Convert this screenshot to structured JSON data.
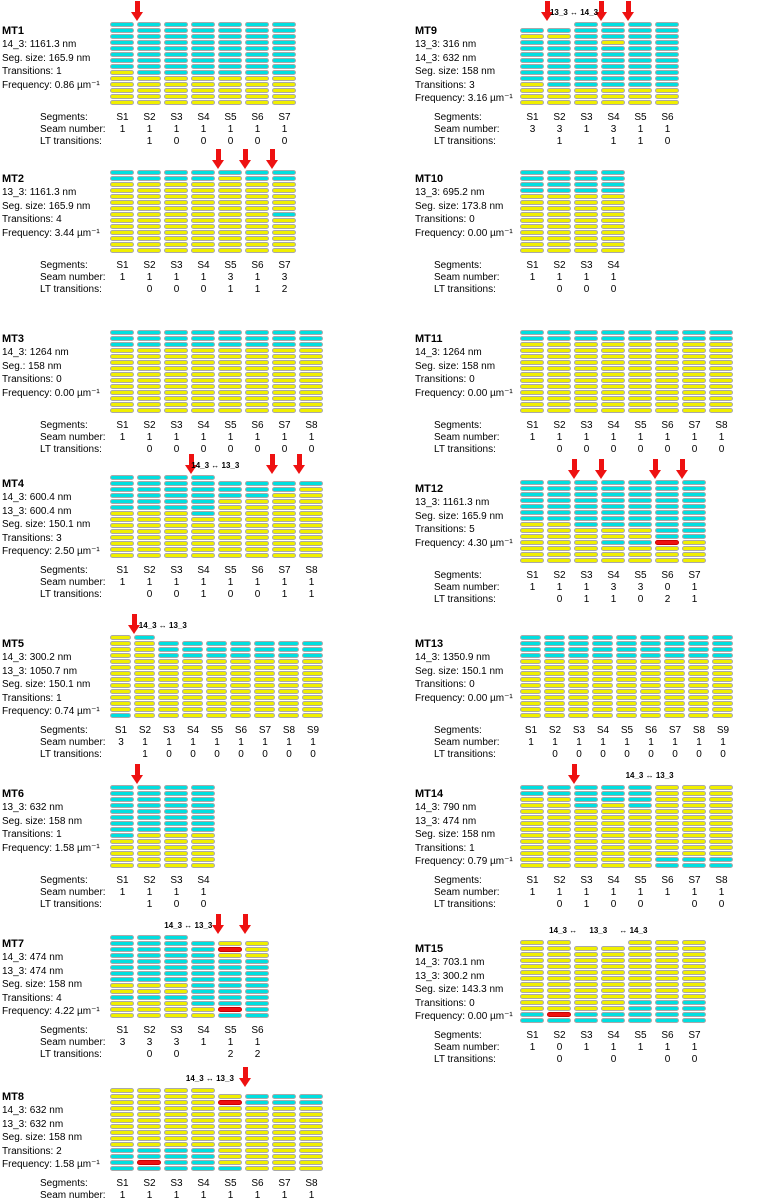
{
  "figure": {
    "colors": {
      "lattice_cyan": "#00dfe0",
      "lattice_yellow": "#f0ef00",
      "lattice_red": "#ee1111",
      "block_border": "#a9a9a9",
      "arrow_red": "#ee1111",
      "background": "#ffffff",
      "text": "#000000"
    },
    "row_labels": {
      "segments": "Segments:",
      "seam": "Seam number:",
      "lt": "LT transitions:"
    },
    "panels": [
      {
        "id": "MT1",
        "title": "MT1",
        "lines": [
          "14_3: 1161.3 nm",
          "Seg. size: 165.9 nm",
          "Transitions: 1",
          "Frequency: 0.86 µm⁻¹"
        ],
        "cols": [
          "ccccccccyyyyyy",
          "cccccccccyyyyy",
          "cccccccccyyyyy",
          "cccccccccyyyyy",
          "cccccccccyyyyy",
          "cccccccccyyyyy",
          "cccccccccyyyyy"
        ],
        "headers": [
          "S1",
          "S2",
          "S3",
          "S4",
          "S5",
          "S6",
          "S7"
        ],
        "seam": [
          "1",
          "1",
          "1",
          "1",
          "1",
          "1",
          "1"
        ],
        "lt": [
          "",
          "1",
          "0",
          "0",
          "0",
          "0",
          "0"
        ],
        "arrows": [
          1
        ],
        "labels": []
      },
      {
        "id": "MT2",
        "title": "MT2",
        "lines": [
          "13_3: 1161.3 nm",
          "Seg. size: 165.9 nm",
          "Transitions: 4",
          "Frequency: 3.44 µm⁻¹"
        ],
        "cols": [
          "ccyyyyyyyyyyyy",
          "ccyyyyyyyyyyyy",
          "ccyyyyyyyyyyyy",
          "ccyyyyyyyyyyyy",
          "cyyyyyyyyyyyyy",
          "ccyyyyyyyyyyyy",
          "ccyyyyycyyyyyy"
        ],
        "headers": [
          "S1",
          "S2",
          "S3",
          "S4",
          "S5",
          "S6",
          "S7"
        ],
        "seam": [
          "1",
          "1",
          "1",
          "1",
          "3",
          "1",
          "3"
        ],
        "lt": [
          "",
          "0",
          "0",
          "0",
          "1",
          "1",
          "2"
        ],
        "arrows": [
          4,
          5,
          6
        ],
        "labels": []
      },
      {
        "id": "MT3",
        "title": "MT3",
        "lines": [
          "14_3: 1264 nm",
          "Seg.: 158 nm",
          "Transitions: 0",
          "Frequency: 0.00 µm⁻¹"
        ],
        "cols": [
          "cccyyyyyyyyyyy",
          "cccyyyyyyyyyyy",
          "cccyyyyyyyyyyy",
          "cccyyyyyyyyyyy",
          "cccyyyyyyyyyyy",
          "cccyyyyyyyyyyy",
          "cccyyyyyyyyyyy",
          "cccyyyyyyyyyyy"
        ],
        "headers": [
          "S1",
          "S2",
          "S3",
          "S4",
          "S5",
          "S6",
          "S7",
          "S8"
        ],
        "seam": [
          "1",
          "1",
          "1",
          "1",
          "1",
          "1",
          "1",
          "1"
        ],
        "lt": [
          "",
          "0",
          "0",
          "0",
          "0",
          "0",
          "0",
          "0"
        ],
        "arrows": [],
        "labels": []
      },
      {
        "id": "MT4",
        "title": "MT4",
        "lines": [
          "14_3: 600.4 nm",
          "13_3: 600.4 nm",
          "Seg. size: 150.1 nm",
          "Transitions: 3",
          "Frequency: 2.50 µm⁻¹"
        ],
        "cols": [
          "ccccccyyyyyyyy",
          "ccccccyyyyyyyy",
          "ccccccyyyyyyyy",
          "cccccccyyyyyyy",
          ".cccyyyyyyyyyy",
          ".cccyyyyyyyyyy",
          ".ccyyyyyyyyyyy",
          ".cyyyyyyyyyyyy"
        ],
        "headers": [
          "S1",
          "S2",
          "S3",
          "S4",
          "S5",
          "S6",
          "S7",
          "S8"
        ],
        "seam": [
          "1",
          "1",
          "1",
          "1",
          "1",
          "1",
          "1",
          "1"
        ],
        "lt": [
          "",
          "0",
          "0",
          "1",
          "0",
          "0",
          "1",
          "1"
        ],
        "arrows": [
          3,
          6,
          7
        ],
        "labels": [
          {
            "c": 3.9,
            "t": "14_3 ↔ 13_3"
          }
        ]
      },
      {
        "id": "MT5",
        "title": "MT5",
        "lines": [
          "14_3: 300.2 nm",
          "13_3: 1050.7 nm",
          "Seg. size: 150.1 nm",
          "Transitions: 1",
          "Frequency: 0.74 µm⁻¹"
        ],
        "cols": [
          "yyyyyyyyyyyyyc",
          "cyyyyyyyyyyyyy",
          ".cccyyyyyyyyyy",
          ".cccyyyyyyyyyy",
          ".cccyyyyyyyyyy",
          ".cccyyyyyyyyyy",
          ".cccyyyyyyyyyy",
          ".cccyyyyyyyyyy",
          ".cccyyyyyyyyyy"
        ],
        "headers": [
          "S1",
          "S2",
          "S3",
          "S4",
          "S5",
          "S6",
          "S7",
          "S8",
          "S9"
        ],
        "seam": [
          "3",
          "1",
          "1",
          "1",
          "1",
          "1",
          "1",
          "1",
          "1"
        ],
        "lt": [
          "",
          "1",
          "0",
          "0",
          "0",
          "0",
          "0",
          "0",
          "0"
        ],
        "arrows": [
          1
        ],
        "labels": [
          {
            "c": 2.2,
            "t": "14_3 ↔ 13_3"
          }
        ]
      },
      {
        "id": "MT6",
        "title": "MT6",
        "lines": [
          "13_3: 632 nm",
          "Seg. size: 158 nm",
          "Transitions: 1",
          "Frequency: 1.58 µm⁻¹"
        ],
        "cols": [
          "cccccccccyyyyy",
          "ccccccccyyyyyy",
          "ccccccccyyyyyy",
          "ccccccccyyyyyy"
        ],
        "headers": [
          "S1",
          "S2",
          "S3",
          "S4"
        ],
        "seam": [
          "1",
          "1",
          "1",
          "1"
        ],
        "lt": [
          "",
          "1",
          "0",
          "0"
        ],
        "arrows": [
          1
        ],
        "labels": []
      },
      {
        "id": "MT7",
        "title": "MT7",
        "lines": [
          "14_3: 474 nm",
          "13_3: 474 nm",
          "Seg. size: 158 nm",
          "Transitions: 4",
          "Frequency: 4.22 µm⁻¹"
        ],
        "cols": [
          "ccccccccyycyyy",
          "ccccccccyycyyy",
          "ccccccccyycyyy",
          ".cccccccccccyy",
          ".yryccccccccrc",
          ".yyycccccccccc"
        ],
        "headers": [
          "S1",
          "S2",
          "S3",
          "S4",
          "S5",
          "S6"
        ],
        "seam": [
          "3",
          "3",
          "3",
          "1",
          "1",
          "1"
        ],
        "lt": [
          "",
          "0",
          "0",
          "",
          "2",
          "2"
        ],
        "arrows": [
          4,
          5
        ],
        "labels": [
          {
            "c": 2.9,
            "t": "14_3 ↔ 13_3"
          }
        ]
      },
      {
        "id": "MT8",
        "title": "MT8",
        "lines": [
          "14_3: 632 nm",
          "13_3: 632 nm",
          "Seg. size: 158 nm",
          "Transitions: 2",
          "Frequency: 1.58 µm⁻¹"
        ],
        "cols": [
          "yyyyyyyyyycccc",
          "yyyyyyyyyyccrc",
          "yyyyyyyyyycccc",
          "yyyyyyyyyycccc",
          ".yryyyyyyyyyyc",
          ".ccyyyyyyyyyyy",
          ".ccyyyyyyyyyyy",
          ".ccyyyyyyyyyyy"
        ],
        "headers": [
          "S1",
          "S2",
          "S3",
          "S4",
          "S5",
          "S6",
          "S7",
          "S8"
        ],
        "seam": [
          "1",
          "1",
          "1",
          "1",
          "1",
          "1",
          "1",
          "1"
        ],
        "lt": [
          "",
          "0",
          "0",
          "0",
          "",
          "2",
          "0",
          "0"
        ],
        "arrows": [
          5
        ],
        "labels": [
          {
            "c": 3.7,
            "t": "14_3 ↔ 13_3"
          }
        ]
      },
      {
        "id": "MT9",
        "title": "MT9",
        "lines": [
          "13_3: 316 nm",
          "14_3: 632 nm",
          "Seg. size: 158 nm",
          "Transitions: 3",
          "Frequency: 3.16 µm⁻¹"
        ],
        "cols": [
          ".cycccccccyyyy",
          ".cyccccccccyyy",
          "cccccccccccyyy",
          "cccycccccccyyy",
          "cccccccccccyyy",
          "cccccccccccyyy"
        ],
        "headers": [
          "S1",
          "S2",
          "S3",
          "S4",
          "S5",
          "S6"
        ],
        "seam": [
          "3",
          "3",
          "1",
          "3",
          "1",
          "1"
        ],
        "lt": [
          "",
          "1",
          "",
          "1",
          "1",
          "0"
        ],
        "arrows": [
          1,
          3,
          4
        ],
        "labels": [
          {
            "c": 2.0,
            "t": "13_3 ↔ 14_3"
          }
        ]
      },
      {
        "id": "MT10",
        "title": "MT10",
        "lines": [
          "13_3: 695.2 nm",
          "Seg. size: 173.8 nm",
          "Transitions: 0",
          "Frequency: 0.00 µm⁻¹"
        ],
        "cols": [
          "ccccyyyyyyyyyy",
          "ccccyyyyyyyyyy",
          "ccccyyyyyyyyyy",
          "ccccyyyyyyyyyy"
        ],
        "headers": [
          "S1",
          "S2",
          "S3",
          "S4"
        ],
        "seam": [
          "1",
          "1",
          "1",
          "1"
        ],
        "lt": [
          "",
          "0",
          "0",
          "0"
        ],
        "arrows": [],
        "labels": []
      },
      {
        "id": "MT11",
        "title": "MT11",
        "lines": [
          "14_3: 1264 nm",
          "Seg. size: 158 nm",
          "Transitions: 0",
          "Frequency: 0.00 µm⁻¹"
        ],
        "cols": [
          "ccyyyyyyyyyyyy",
          "ccyyyyyyyyyyyy",
          "ccyyyyyyyyyyyy",
          "ccyyyyyyyyyyyy",
          "ccyyyyyyyyyyyy",
          "ccyyyyyyyyyyyy",
          "ccyyyyyyyyyyyy",
          "ccyyyyyyyyyyyy"
        ],
        "headers": [
          "S1",
          "S2",
          "S3",
          "S4",
          "S5",
          "S6",
          "S7",
          "S8"
        ],
        "seam": [
          "1",
          "1",
          "1",
          "1",
          "1",
          "1",
          "1",
          "1"
        ],
        "lt": [
          "",
          "0",
          "0",
          "0",
          "0",
          "0",
          "0",
          "0"
        ],
        "arrows": [],
        "labels": []
      },
      {
        "id": "MT12",
        "title": "MT12",
        "lines": [
          "13_3: 1161.3 nm",
          "Seg. size: 165.9 nm",
          "Transitions: 5",
          "Frequency: 4.30 µm⁻¹"
        ],
        "cols": [
          "cccccccyyyyyyy",
          "cccccccyyyyyyy",
          "ccccccccyyyyyy",
          "ccccccccyycyyy",
          "ccccccccyycyyy",
          "ccccccccccryyy",
          "ccccccccccyyyy"
        ],
        "headers": [
          "S1",
          "S2",
          "S3",
          "S4",
          "S5",
          "S6",
          "S7"
        ],
        "seam": [
          "1",
          "1",
          "1",
          "3",
          "3",
          "0",
          "1"
        ],
        "lt": [
          "",
          "0",
          "1",
          "1",
          "0",
          "2",
          "1"
        ],
        "arrows": [
          2,
          3,
          5,
          6
        ],
        "labels": []
      },
      {
        "id": "MT13",
        "title": "MT13",
        "lines": [
          "14_3: 1350.9 nm",
          "Seg. size: 150.1 nm",
          "Transitions: 0",
          "Frequency: 0.00 µm⁻¹"
        ],
        "cols": [
          "ccccyyyyyyyyyy",
          "ccccyyyyyyyyyy",
          "ccccyyyyyyyyyy",
          "ccccyyyyyyyyyy",
          "ccccyyyyyyyyyy",
          "ccccyyyyyyyyyy",
          "ccccyyyyyyyyyy",
          "ccccyyyyyyyyyy",
          "ccccyyyyyyyyyy"
        ],
        "headers": [
          "S1",
          "S2",
          "S3",
          "S4",
          "S5",
          "S6",
          "S7",
          "S8",
          "S9"
        ],
        "seam": [
          "1",
          "1",
          "1",
          "1",
          "1",
          "1",
          "1",
          "1",
          "1"
        ],
        "lt": [
          "",
          "0",
          "0",
          "0",
          "0",
          "0",
          "0",
          "0",
          "0"
        ],
        "arrows": [],
        "labels": []
      },
      {
        "id": "MT14",
        "title": "MT14",
        "lines": [
          "14_3: 790 nm",
          "13_3: 474 nm",
          "Seg. size: 158 nm",
          "Transitions: 1",
          "Frequency: 0.79 µm⁻¹"
        ],
        "cols": [
          "ccyyyyyyyyyyyy",
          "ccyyyyyyyyyyyy",
          "ccccyyyyyyyyyy",
          "cccyyyyyyyyyyy",
          "ccccyyyyyyyyyy",
          "yyyyyyyyyyyycc",
          "yyyyyyyyyyyycc",
          "yyyyyyyyyyyycc"
        ],
        "headers": [
          "S1",
          "S2",
          "S3",
          "S4",
          "S5",
          "S6",
          "S7",
          "S8"
        ],
        "seam": [
          "1",
          "1",
          "1",
          "1",
          "1",
          "1",
          "1",
          "1"
        ],
        "lt": [
          "",
          "0",
          "1",
          "0",
          "0",
          "",
          "0",
          "0"
        ],
        "arrows": [
          2
        ],
        "labels": [
          {
            "c": 4.8,
            "t": "14_3 ↔ 13_3"
          }
        ]
      },
      {
        "id": "MT15",
        "title": "MT15",
        "lines": [
          "14_3: 703.1 nm",
          "13_3: 300.2 nm",
          "Seg. size: 143.3 nm",
          "Transitions: 0",
          "Frequency: 0.00 µm⁻¹"
        ],
        "cols": [
          "yyyyyyyyyyyycc",
          "yyyyyyyyyyyyrc",
          ".yyyyyyyyyyycc",
          ".yyyyyyyyyyycc",
          "yyyyyyyyyycccc",
          "yyyyyyyyyycccc",
          "yyyyyyyyyycccc"
        ],
        "headers": [
          "S1",
          "S2",
          "S3",
          "S4",
          "S5",
          "S6",
          "S7"
        ],
        "seam": [
          "1",
          "0",
          "1",
          "1",
          "1",
          "1",
          "1"
        ],
        "lt": [
          "",
          "0",
          "",
          "0",
          "",
          "0",
          "0"
        ],
        "arrows": [],
        "labels": [
          {
            "c": 1.6,
            "t": "14_3 ↔"
          },
          {
            "c": 2.9,
            "t": "13_3"
          },
          {
            "c": 4.2,
            "t": "↔ 14_3"
          }
        ]
      }
    ]
  }
}
